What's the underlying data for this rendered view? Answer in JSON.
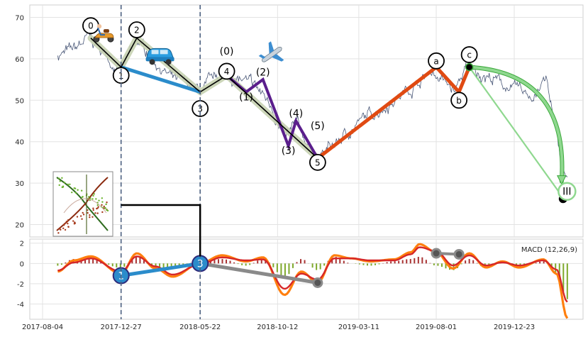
{
  "colors": {
    "price_line": "#4a5878",
    "primary_wave": "#000000",
    "primary_wave_band": "#c6d2b1",
    "blue": "#2b8ccb",
    "purple": "#5a1e8c",
    "orange": "#e04a12",
    "green": "#8fd88f",
    "macd_line": "#ff7f0e",
    "signal_line": "#d62728",
    "hist_pos": "#a83232",
    "hist_neg": "#7ea82b",
    "gray_line": "#8a8a8a",
    "dashed_vline": "#4c6080"
  },
  "icons": [
    "scooter-icon",
    "car-icon",
    "airplane-icon",
    "trend-thumbnail-icon"
  ],
  "chart_data": [
    {
      "type": "line",
      "name": "price",
      "x_ticks": [
        "2017-08-04",
        "2017-12-27",
        "2018-05-22",
        "2018-10-12",
        "2019-03-11",
        "2019-08-01",
        "2019-12-23"
      ],
      "ylim": [
        17,
        73
      ],
      "y_ticks": [
        20,
        30,
        40,
        50,
        60,
        70
      ],
      "grid": true,
      "price_points": [
        {
          "x": "2017-09-01",
          "y": 61
        },
        {
          "x": "2017-10-01",
          "y": 62
        },
        {
          "x": "2017-10-28",
          "y": 65
        },
        {
          "x": "2017-11-20",
          "y": 62
        },
        {
          "x": "2017-12-27",
          "y": 57
        },
        {
          "x": "2018-01-25",
          "y": 64
        },
        {
          "x": "2018-02-25",
          "y": 60
        },
        {
          "x": "2018-04-01",
          "y": 55
        },
        {
          "x": "2018-05-22",
          "y": 52
        },
        {
          "x": "2018-07-01",
          "y": 56
        },
        {
          "x": "2018-08-01",
          "y": 55
        },
        {
          "x": "2018-09-01",
          "y": 53
        },
        {
          "x": "2018-10-01",
          "y": 49
        },
        {
          "x": "2018-10-25",
          "y": 40
        },
        {
          "x": "2018-11-15",
          "y": 44
        },
        {
          "x": "2018-12-25",
          "y": 36
        },
        {
          "x": "2019-02-01",
          "y": 40
        },
        {
          "x": "2019-03-15",
          "y": 45
        },
        {
          "x": "2019-05-01",
          "y": 49
        },
        {
          "x": "2019-06-15",
          "y": 53
        },
        {
          "x": "2019-07-25",
          "y": 57
        },
        {
          "x": "2019-09-05",
          "y": 52
        },
        {
          "x": "2019-09-25",
          "y": 58
        },
        {
          "x": "2019-11-01",
          "y": 56
        },
        {
          "x": "2019-12-15",
          "y": 53
        },
        {
          "x": "2020-01-25",
          "y": 51
        },
        {
          "x": "2020-02-20",
          "y": 55
        },
        {
          "x": "2020-03-15",
          "y": 38
        },
        {
          "x": "2020-03-30",
          "y": 30
        }
      ],
      "wave_black": [
        {
          "x": "2017-11-01",
          "y": 65
        },
        {
          "x": "2017-12-27",
          "y": 58
        },
        {
          "x": "2018-01-25",
          "y": 65
        },
        {
          "x": "2018-05-22",
          "y": 52
        },
        {
          "x": "2018-07-10",
          "y": 56
        },
        {
          "x": "2018-12-25",
          "y": 36
        }
      ],
      "wave_blue": [
        {
          "x": "2017-12-27",
          "y": 58
        },
        {
          "x": "2018-05-22",
          "y": 52
        }
      ],
      "wave_purple": [
        {
          "x": "2018-07-10",
          "y": 56
        },
        {
          "x": "2018-08-15",
          "y": 52
        },
        {
          "x": "2018-09-15",
          "y": 55
        },
        {
          "x": "2018-11-01",
          "y": 39
        },
        {
          "x": "2018-11-15",
          "y": 45
        },
        {
          "x": "2018-12-25",
          "y": 36
        }
      ],
      "wave_orange": [
        {
          "x": "2018-12-25",
          "y": 36
        },
        {
          "x": "2019-08-01",
          "y": 58
        },
        {
          "x": "2019-09-12",
          "y": 52
        },
        {
          "x": "2019-10-01",
          "y": 58
        }
      ],
      "green_curve": [
        {
          "x": "2019-10-01",
          "y": 58
        },
        {
          "x": "2020-03-30",
          "y": 27
        }
      ],
      "green_line": [
        {
          "x": "2019-10-01",
          "y": 58
        },
        {
          "x": "2020-03-30",
          "y": 26
        }
      ],
      "labels": [
        {
          "text": "0",
          "x": "2017-11-01",
          "y": 68,
          "circle": true
        },
        {
          "text": "1",
          "x": "2017-12-27",
          "y": 56,
          "circle": true
        },
        {
          "text": "2",
          "x": "2018-01-25",
          "y": 67,
          "circle": true
        },
        {
          "text": "3",
          "x": "2018-05-22",
          "y": 48,
          "circle": true
        },
        {
          "text": "4",
          "x": "2018-07-10",
          "y": 57,
          "circle": true
        },
        {
          "text": "5",
          "x": "2018-12-25",
          "y": 35,
          "circle": true
        },
        {
          "text": "a",
          "x": "2019-08-01",
          "y": 59.5,
          "circle": true
        },
        {
          "text": "b",
          "x": "2019-09-12",
          "y": 50,
          "circle": true
        },
        {
          "text": "c",
          "x": "2019-10-01",
          "y": 61,
          "circle": true
        },
        {
          "text": "III",
          "x": "2020-04-01",
          "y": 28,
          "circle": true
        },
        {
          "text": "(0)",
          "x": "2018-07-10",
          "y": 61,
          "circle": false
        },
        {
          "text": "(1)",
          "x": "2018-08-15",
          "y": 50,
          "circle": false
        },
        {
          "text": "(2)",
          "x": "2018-09-15",
          "y": 56,
          "circle": false
        },
        {
          "text": "(3)",
          "x": "2018-11-01",
          "y": 37,
          "circle": false
        },
        {
          "text": "(4)",
          "x": "2018-11-15",
          "y": 46,
          "circle": false
        },
        {
          "text": "(5)",
          "x": "2018-12-25",
          "y": 43,
          "circle": false
        }
      ]
    },
    {
      "type": "line",
      "name": "macd",
      "legend": "MACD (12,26,9)",
      "legend_position": "top-right",
      "ylim": [
        -5.5,
        2.4
      ],
      "y_ticks": [
        2,
        0,
        -2,
        -4
      ],
      "macd_points": [
        {
          "x": "2017-09-01",
          "y": -0.8
        },
        {
          "x": "2017-10-01",
          "y": 0.3
        },
        {
          "x": "2017-11-01",
          "y": 0.7
        },
        {
          "x": "2017-12-27",
          "y": -1.0
        },
        {
          "x": "2018-01-25",
          "y": 1.0
        },
        {
          "x": "2018-03-01",
          "y": -0.5
        },
        {
          "x": "2018-04-01",
          "y": -1.3
        },
        {
          "x": "2018-05-22",
          "y": 0.0
        },
        {
          "x": "2018-07-01",
          "y": 0.8
        },
        {
          "x": "2018-08-15",
          "y": 0.2
        },
        {
          "x": "2018-09-15",
          "y": 0.6
        },
        {
          "x": "2018-10-25",
          "y": -3.1
        },
        {
          "x": "2018-11-25",
          "y": -0.8
        },
        {
          "x": "2018-12-25",
          "y": -1.9
        },
        {
          "x": "2019-01-25",
          "y": 0.8
        },
        {
          "x": "2019-02-25",
          "y": 0.5
        },
        {
          "x": "2019-04-01",
          "y": 0.2
        },
        {
          "x": "2019-05-15",
          "y": 0.4
        },
        {
          "x": "2019-06-15",
          "y": 1.1
        },
        {
          "x": "2019-07-01",
          "y": 1.9
        },
        {
          "x": "2019-08-01",
          "y": 1.1
        },
        {
          "x": "2019-09-01",
          "y": -0.5
        },
        {
          "x": "2019-10-01",
          "y": 1.0
        },
        {
          "x": "2019-11-01",
          "y": -0.4
        },
        {
          "x": "2019-12-01",
          "y": 0.2
        },
        {
          "x": "2020-01-01",
          "y": -0.4
        },
        {
          "x": "2020-02-15",
          "y": 0.4
        },
        {
          "x": "2020-03-10",
          "y": -1.0
        },
        {
          "x": "2020-03-30",
          "y": -5.4
        }
      ],
      "signal_points": [
        {
          "x": "2017-09-01",
          "y": -0.7
        },
        {
          "x": "2017-10-01",
          "y": 0.1
        },
        {
          "x": "2017-11-01",
          "y": 0.5
        },
        {
          "x": "2017-12-27",
          "y": -0.8
        },
        {
          "x": "2018-01-25",
          "y": 0.7
        },
        {
          "x": "2018-03-01",
          "y": -0.3
        },
        {
          "x": "2018-04-01",
          "y": -1.1
        },
        {
          "x": "2018-05-22",
          "y": -0.1
        },
        {
          "x": "2018-07-01",
          "y": 0.6
        },
        {
          "x": "2018-08-15",
          "y": 0.3
        },
        {
          "x": "2018-09-15",
          "y": 0.4
        },
        {
          "x": "2018-10-25",
          "y": -2.5
        },
        {
          "x": "2018-11-25",
          "y": -1.0
        },
        {
          "x": "2018-12-25",
          "y": -1.6
        },
        {
          "x": "2019-01-25",
          "y": 0.5
        },
        {
          "x": "2019-02-25",
          "y": 0.5
        },
        {
          "x": "2019-04-01",
          "y": 0.3
        },
        {
          "x": "2019-05-15",
          "y": 0.3
        },
        {
          "x": "2019-06-15",
          "y": 0.9
        },
        {
          "x": "2019-07-01",
          "y": 1.6
        },
        {
          "x": "2019-08-01",
          "y": 1.2
        },
        {
          "x": "2019-09-01",
          "y": -0.2
        },
        {
          "x": "2019-10-01",
          "y": 0.8
        },
        {
          "x": "2019-11-01",
          "y": -0.2
        },
        {
          "x": "2019-12-01",
          "y": 0.1
        },
        {
          "x": "2020-01-01",
          "y": -0.2
        },
        {
          "x": "2020-02-15",
          "y": 0.3
        },
        {
          "x": "2020-03-10",
          "y": -0.6
        },
        {
          "x": "2020-03-30",
          "y": -3.8
        }
      ],
      "blue_link": [
        {
          "x": "2017-12-27",
          "y": -1.2
        },
        {
          "x": "2018-05-22",
          "y": 0.0
        }
      ],
      "gray_link_1": [
        {
          "x": "2018-05-22",
          "y": 0.0
        },
        {
          "x": "2018-12-25",
          "y": -1.9
        }
      ],
      "gray_link_2": [
        {
          "x": "2019-08-01",
          "y": 1.0
        },
        {
          "x": "2019-09-12",
          "y": 0.9
        }
      ],
      "labels": [
        {
          "text": "1",
          "x": "2017-12-27",
          "y": -1.2
        },
        {
          "text": "3",
          "x": "2018-05-22",
          "y": 0.0
        }
      ]
    }
  ],
  "vlines": [
    "2017-12-27",
    "2018-05-22"
  ]
}
